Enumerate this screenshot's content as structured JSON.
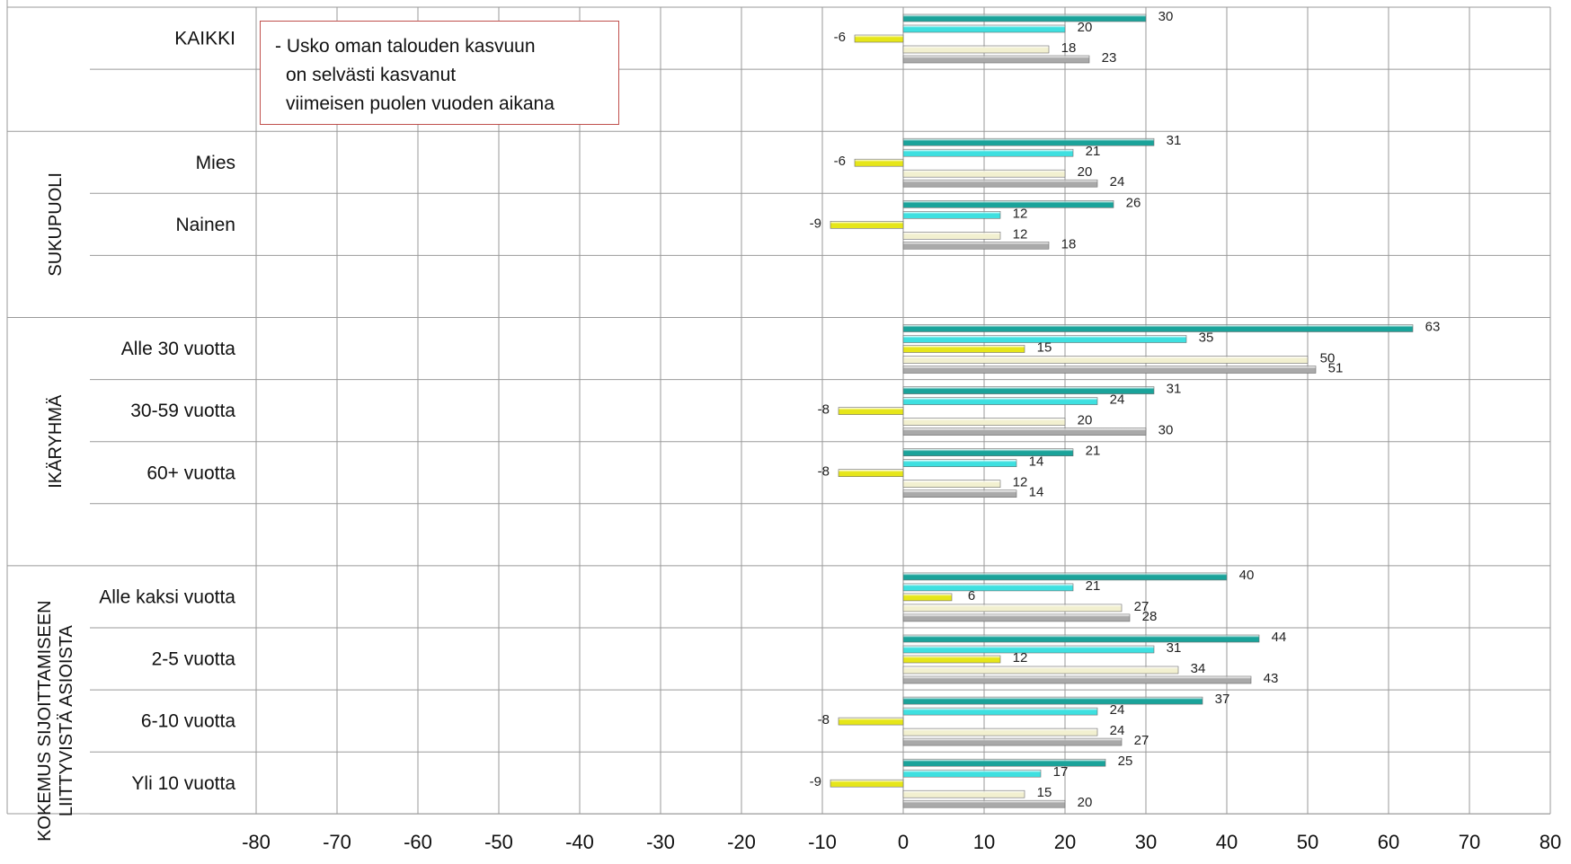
{
  "chart_data": {
    "type": "bar",
    "orientation": "horizontal",
    "annotation": [
      "- Usko oman talouden kasvuun",
      "on selvästi kasvanut",
      "viimeisen puolen vuoden aikana"
    ],
    "xlim": [
      -80,
      80
    ],
    "xticks": [
      "-80",
      "-70",
      "-60",
      "-50",
      "-40",
      "-30",
      "-20",
      "-10",
      "0",
      "10",
      "20",
      "30",
      "40",
      "50",
      "60",
      "70",
      "80"
    ],
    "grid": true,
    "legend": "none",
    "series_colors": [
      "#1aa39a",
      "#3ee0e0",
      "#e6e619",
      "#f2f0d0",
      "#a9a9a9"
    ],
    "groups": [
      {
        "label": "",
        "categories": [
          {
            "label": "KAIKKI",
            "values": [
              30,
              20,
              -6,
              18,
              23
            ]
          }
        ]
      },
      {
        "label": "SUKUPUOLI",
        "categories": [
          {
            "label": "Mies",
            "values": [
              31,
              21,
              -6,
              20,
              24
            ]
          },
          {
            "label": "Nainen",
            "values": [
              26,
              12,
              -9,
              12,
              18
            ]
          }
        ]
      },
      {
        "label": "IKÄRYHMÄ",
        "categories": [
          {
            "label": "Alle 30 vuotta",
            "values": [
              63,
              35,
              15,
              50,
              51
            ]
          },
          {
            "label": "30-59 vuotta",
            "values": [
              31,
              24,
              -8,
              20,
              30
            ]
          },
          {
            "label": "60+ vuotta",
            "values": [
              21,
              14,
              -8,
              12,
              14
            ]
          }
        ]
      },
      {
        "label": [
          "KOKEMUS SIJOITTAMISEEN",
          "LIITTYVISTÄ ASIOISTA"
        ],
        "categories": [
          {
            "label": "Alle kaksi vuotta",
            "values": [
              40,
              21,
              6,
              27,
              28
            ]
          },
          {
            "label": "2-5 vuotta",
            "values": [
              44,
              31,
              12,
              34,
              43
            ]
          },
          {
            "label": "6-10 vuotta",
            "values": [
              37,
              24,
              -8,
              24,
              27
            ]
          },
          {
            "label": "Yli 10 vuotta",
            "values": [
              25,
              17,
              -9,
              15,
              20
            ]
          }
        ]
      }
    ]
  }
}
